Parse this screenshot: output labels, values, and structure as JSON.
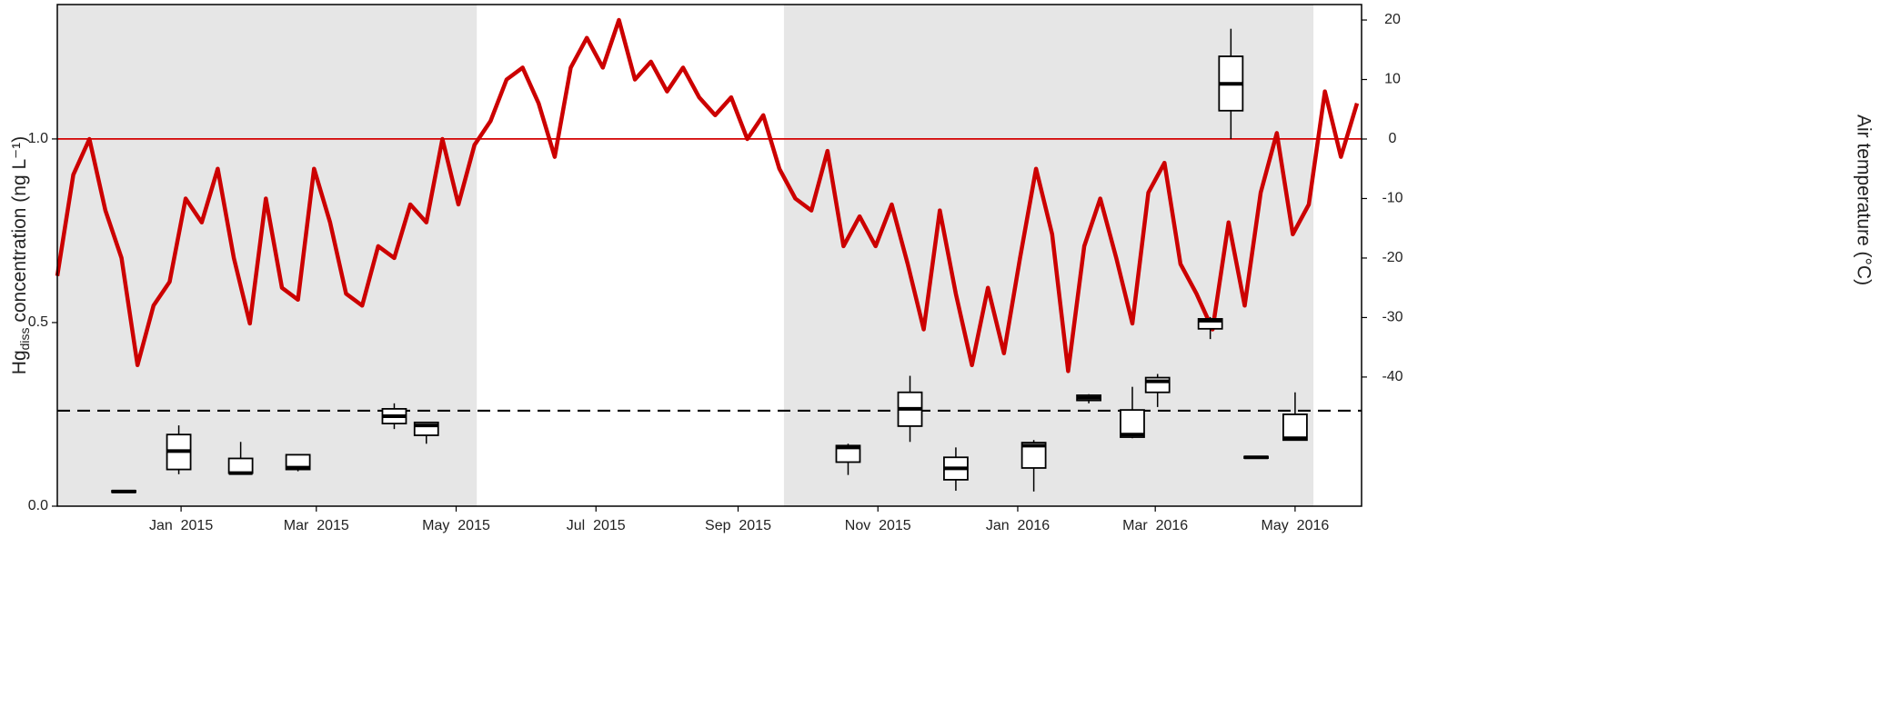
{
  "chart_data": {
    "type": "box",
    "y_label": {
      "main": "Hg",
      "sub": "diss",
      "rest": " concentration (ng L⁻¹)"
    },
    "y2_label": "Air temperature (°C)",
    "xlim": [
      "2014-11-08",
      "2016-05-30"
    ],
    "xticks": [
      {
        "value": "2015-01-01",
        "label": "Jan  2015"
      },
      {
        "value": "2015-03-01",
        "label": "Mar  2015"
      },
      {
        "value": "2015-05-01",
        "label": "May  2015"
      },
      {
        "value": "2015-07-01",
        "label": "Jul  2015"
      },
      {
        "value": "2015-09-01",
        "label": "Sep  2015"
      },
      {
        "value": "2015-11-01",
        "label": "Nov  2015"
      },
      {
        "value": "2016-01-01",
        "label": "Jan  2016"
      },
      {
        "value": "2016-03-01",
        "label": "Mar  2016"
      },
      {
        "value": "2016-05-01",
        "label": "May  2016"
      }
    ],
    "ylim": [
      0,
      1.366
    ],
    "yticks": [
      {
        "value": 0,
        "label": "0.0"
      },
      0.5,
      {
        "value": 1,
        "label": "1.0"
      }
    ],
    "y2lim": [
      -61.7,
      22.6
    ],
    "y2ticks": [
      -40,
      -30,
      -20,
      -10,
      0,
      10,
      20
    ],
    "shaded": [
      [
        "2014-11-08",
        "2015-05-10"
      ],
      [
        "2015-09-21",
        "2016-05-09"
      ]
    ],
    "shade_color": "#e6e6e6",
    "reference_lines": [
      {
        "y": 1,
        "color": "#d40000",
        "style": "solid"
      },
      {
        "y": 0.26,
        "color": "#000000",
        "style": "dashed"
      }
    ],
    "box_color": "#000000",
    "boxes": [
      {
        "x": "2014-12-07",
        "low": 0.038,
        "q1": 0.038,
        "median": 0.04,
        "q3": 0.042,
        "high": 0.042
      },
      {
        "x": "2014-12-31",
        "low": 0.087,
        "q1": 0.1,
        "median": 0.15,
        "q3": 0.195,
        "high": 0.22
      },
      {
        "x": "2015-01-27",
        "low": 0.09,
        "q1": 0.09,
        "median": 0.09,
        "q3": 0.13,
        "high": 0.175
      },
      {
        "x": "2015-02-21",
        "low": 0.095,
        "q1": 0.1,
        "median": 0.105,
        "q3": 0.14,
        "high": 0.14
      },
      {
        "x": "2015-04-04",
        "low": 0.21,
        "q1": 0.225,
        "median": 0.245,
        "q3": 0.265,
        "high": 0.28
      },
      {
        "x": "2015-04-18",
        "low": 0.17,
        "q1": 0.193,
        "median": 0.22,
        "q3": 0.228,
        "high": 0.23
      },
      {
        "x": "2015-10-19",
        "low": 0.085,
        "q1": 0.12,
        "median": 0.16,
        "q3": 0.165,
        "high": 0.17
      },
      {
        "x": "2015-11-15",
        "low": 0.175,
        "q1": 0.218,
        "median": 0.265,
        "q3": 0.31,
        "high": 0.355
      },
      {
        "x": "2015-12-05",
        "low": 0.042,
        "q1": 0.072,
        "median": 0.103,
        "q3": 0.133,
        "high": 0.16
      },
      {
        "x": "2016-01-08",
        "low": 0.04,
        "q1": 0.104,
        "median": 0.165,
        "q3": 0.173,
        "high": 0.18
      },
      {
        "x": "2016-02-01",
        "low": 0.28,
        "q1": 0.288,
        "median": 0.295,
        "q3": 0.302,
        "high": 0.305
      },
      {
        "x": "2016-02-20",
        "low": 0.185,
        "q1": 0.188,
        "median": 0.195,
        "q3": 0.262,
        "high": 0.325
      },
      {
        "x": "2016-03-02",
        "low": 0.27,
        "q1": 0.31,
        "median": 0.34,
        "q3": 0.35,
        "high": 0.36
      },
      {
        "x": "2016-03-25",
        "low": 0.455,
        "q1": 0.483,
        "median": 0.505,
        "q3": 0.51,
        "high": 0.515
      },
      {
        "x": "2016-04-03",
        "low": 1.0,
        "q1": 1.077,
        "median": 1.15,
        "q3": 1.225,
        "high": 1.3
      },
      {
        "x": "2016-04-14",
        "low": 0.131,
        "q1": 0.131,
        "median": 0.133,
        "q3": 0.135,
        "high": 0.135
      },
      {
        "x": "2016-05-01",
        "low": 0.18,
        "q1": 0.18,
        "median": 0.185,
        "q3": 0.25,
        "high": 0.31
      }
    ],
    "series": [
      {
        "name": "Air temperature",
        "axis": "y2",
        "color": "#cc0000",
        "x": [
          "2014-11-08",
          "2014-11-15",
          "2014-11-22",
          "2014-11-29",
          "2014-12-06",
          "2014-12-13",
          "2014-12-20",
          "2014-12-27",
          "2015-01-03",
          "2015-01-10",
          "2015-01-17",
          "2015-01-24",
          "2015-01-31",
          "2015-02-07",
          "2015-02-14",
          "2015-02-21",
          "2015-02-28",
          "2015-03-07",
          "2015-03-14",
          "2015-03-21",
          "2015-03-28",
          "2015-04-04",
          "2015-04-11",
          "2015-04-18",
          "2015-04-25",
          "2015-05-02",
          "2015-05-09",
          "2015-05-16",
          "2015-05-23",
          "2015-05-30",
          "2015-06-06",
          "2015-06-13",
          "2015-06-20",
          "2015-06-27",
          "2015-07-04",
          "2015-07-11",
          "2015-07-18",
          "2015-07-25",
          "2015-08-01",
          "2015-08-08",
          "2015-08-15",
          "2015-08-22",
          "2015-08-29",
          "2015-09-05",
          "2015-09-12",
          "2015-09-19",
          "2015-09-26",
          "2015-10-03",
          "2015-10-10",
          "2015-10-17",
          "2015-10-24",
          "2015-10-31",
          "2015-11-07",
          "2015-11-14",
          "2015-11-21",
          "2015-11-28",
          "2015-12-05",
          "2015-12-12",
          "2015-12-19",
          "2015-12-26",
          "2016-01-02",
          "2016-01-09",
          "2016-01-16",
          "2016-01-23",
          "2016-01-30",
          "2016-02-06",
          "2016-02-13",
          "2016-02-20",
          "2016-02-27",
          "2016-03-05",
          "2016-03-12",
          "2016-03-19",
          "2016-03-26",
          "2016-04-02",
          "2016-04-09",
          "2016-04-16",
          "2016-04-23",
          "2016-04-30",
          "2016-05-07",
          "2016-05-14",
          "2016-05-21",
          "2016-05-28"
        ],
        "values": [
          -23,
          -6,
          0,
          -12,
          -20,
          -38,
          -28,
          -24,
          -10,
          -14,
          -5,
          -20,
          -31,
          -10,
          -25,
          -27,
          -5,
          -14,
          -26,
          -28,
          -18,
          -20,
          -11,
          -14,
          0,
          -11,
          -1,
          3,
          10,
          12,
          6,
          -3,
          12,
          17,
          12,
          20,
          10,
          13,
          8,
          12,
          7,
          4,
          7,
          0,
          4,
          -5,
          -10,
          -12,
          -2,
          -18,
          -13,
          -18,
          -11,
          -21,
          -32,
          -12,
          -26,
          -38,
          -25,
          -36,
          -20,
          -5,
          -16,
          -39,
          -18,
          -10,
          -20,
          -31,
          -9,
          -4,
          -21,
          -26,
          -32,
          -14,
          -28,
          -9,
          1,
          -16,
          -11,
          8,
          -3,
          6
        ]
      }
    ]
  }
}
